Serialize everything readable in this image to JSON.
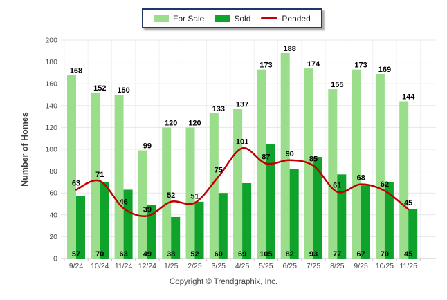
{
  "chart_data": {
    "type": "bar+line",
    "categories": [
      "9/24",
      "10/24",
      "11/24",
      "12/24",
      "1/25",
      "2/25",
      "3/25",
      "4/25",
      "5/25",
      "6/25",
      "7/25",
      "8/25",
      "9/25",
      "10/25",
      "11/25"
    ],
    "series": [
      {
        "name": "For Sale",
        "type": "bar",
        "color": "#9ADE8C",
        "values": [
          168,
          152,
          150,
          99,
          120,
          120,
          133,
          137,
          173,
          188,
          174,
          155,
          173,
          169,
          144
        ]
      },
      {
        "name": "Sold",
        "type": "bar",
        "color": "#0FA32B",
        "values": [
          57,
          70,
          63,
          49,
          38,
          52,
          60,
          69,
          105,
          82,
          93,
          77,
          67,
          70,
          45
        ]
      },
      {
        "name": "Pended",
        "type": "line",
        "color": "#C00000",
        "values": [
          63,
          71,
          46,
          39,
          52,
          51,
          75,
          101,
          87,
          90,
          85,
          61,
          68,
          62,
          45
        ]
      }
    ],
    "title": "",
    "xlabel": "",
    "ylabel": "Number of Homes",
    "ylim": [
      0,
      200
    ],
    "ytick_step": 20,
    "grid": true,
    "legend_position": "top-center"
  },
  "footer": {
    "copyright": "Copyright © Trendgraphix, Inc."
  },
  "colors": {
    "for_sale": "#9ADE8C",
    "sold": "#0FA32B",
    "pended": "#C00000",
    "legend_border": "#1F3864",
    "gridline": "#E7E7E7",
    "axis_line": "#C4C4C4",
    "axis_text": "#474747",
    "value_label_text": "#000000"
  }
}
